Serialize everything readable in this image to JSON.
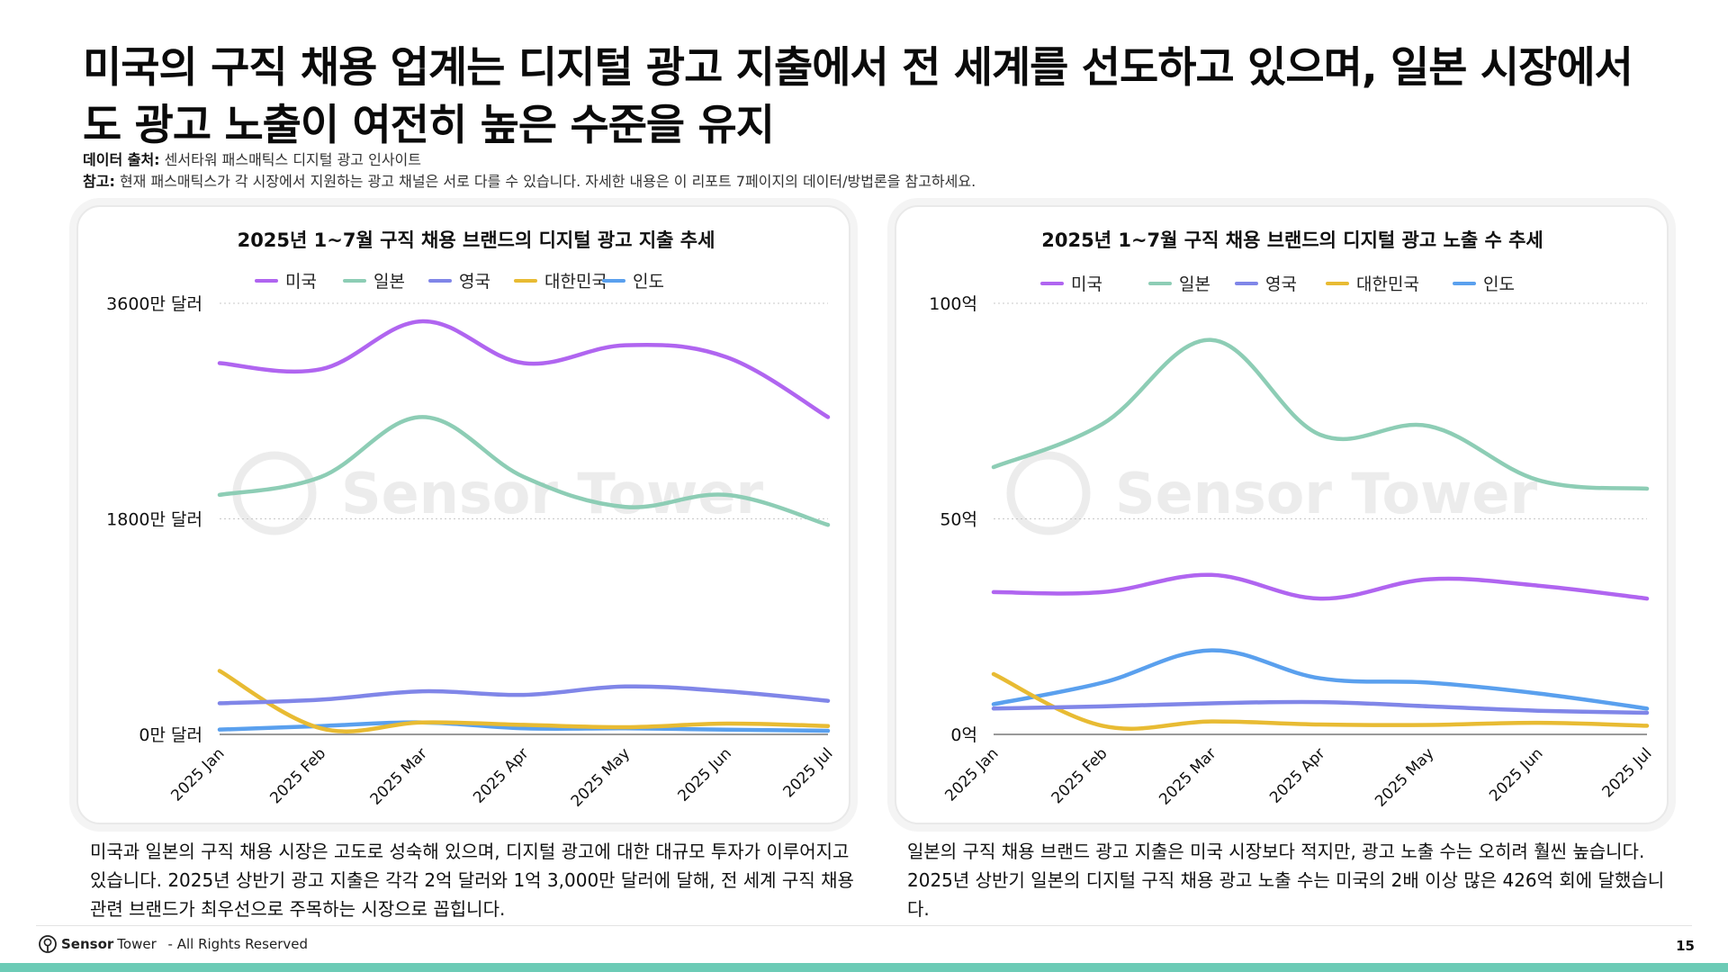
{
  "header": {
    "title": "미국의 구직 채용 업계는 디지털 광고 지출에서 전 세계를 선도하고 있으며, 일본 시장에서도 광고 노출이 여전히 높은 수준을 유지",
    "source_label": "데이터 출처:",
    "source_text": "센서타워 패스매틱스 디지털 광고 인사이트",
    "note_label": "참고:",
    "note_text": "현재 패스매틱스가 각 시장에서 지원하는 광고 채널은 서로 다를 수 있습니다. 자세한 내용은 이 리포트 7페이지의 데이터/방법론을 참고하세요."
  },
  "watermark": "Sensor Tower",
  "colors": {
    "미국": "#b065f0",
    "일본": "#8dcdb5",
    "영국": "#8086e8",
    "대한민국": "#e8bb33",
    "인도": "#5aa0ee"
  },
  "chart_data": [
    {
      "type": "line",
      "title": "2025년 1~7월 구직 채용 브랜드의 디지털 광고 지출 추세",
      "categories": [
        "2025 Jan",
        "2025 Feb",
        "2025 Mar",
        "2025 Apr",
        "2025 May",
        "2025 Jun",
        "2025 Jul"
      ],
      "ylim": [
        0,
        36
      ],
      "y_ticks": [
        0,
        18,
        36
      ],
      "y_tick_labels": [
        "0만 달러",
        "1800만 달러",
        "3600만 달러"
      ],
      "legend": [
        "미국",
        "일본",
        "영국",
        "대한민국",
        "인도"
      ],
      "legend_position": "top",
      "grid": true,
      "series": [
        {
          "name": "미국",
          "values": [
            31,
            30.5,
            34.5,
            31,
            32.5,
            31.5,
            26.5
          ]
        },
        {
          "name": "일본",
          "values": [
            20,
            21.5,
            26.5,
            21.5,
            19,
            20,
            17.5
          ]
        },
        {
          "name": "영국",
          "values": [
            2.6,
            2.9,
            3.6,
            3.3,
            4.0,
            3.6,
            2.8
          ]
        },
        {
          "name": "대한민국",
          "values": [
            5.3,
            0.5,
            1.0,
            0.8,
            0.6,
            0.9,
            0.7
          ]
        },
        {
          "name": "인도",
          "values": [
            0.4,
            0.7,
            1.0,
            0.5,
            0.5,
            0.4,
            0.3
          ]
        }
      ]
    },
    {
      "type": "line",
      "title": "2025년 1~7월 구직 채용 브랜드의 디지털 광고 노출 수 추세",
      "categories": [
        "2025 Jan",
        "2025 Feb",
        "2025 Mar",
        "2025 Apr",
        "2025 May",
        "2025 Jun",
        "2025 Jul"
      ],
      "ylim": [
        0,
        100
      ],
      "y_ticks": [
        0,
        50,
        100
      ],
      "y_tick_labels": [
        "0억",
        "50억",
        "100억"
      ],
      "legend": [
        "미국",
        "일본",
        "영국",
        "대한민국",
        "인도"
      ],
      "legend_position": "top",
      "grid": true,
      "series": [
        {
          "name": "미국",
          "values": [
            33,
            33,
            37,
            31.5,
            36,
            34.5,
            31.5
          ]
        },
        {
          "name": "일본",
          "values": [
            62,
            72,
            91.5,
            69.5,
            71.5,
            59,
            57
          ]
        },
        {
          "name": "영국",
          "values": [
            6,
            6.5,
            7.2,
            7.5,
            6.5,
            5.5,
            5
          ]
        },
        {
          "name": "대한민국",
          "values": [
            14,
            2,
            3,
            2.3,
            2.2,
            2.7,
            2
          ]
        },
        {
          "name": "인도",
          "values": [
            7,
            12,
            19.5,
            13,
            12,
            9.5,
            6
          ]
        }
      ]
    }
  ],
  "descriptions": {
    "left": "미국과 일본의 구직 채용 시장은 고도로 성숙해 있으며, 디지털 광고에 대한 대규모 투자가 이루어지고 있습니다. 2025년 상반기 광고 지출은 각각 2억 달러와 1억 3,000만 달러에 달해, 전 세계 구직 채용 관련 브랜드가 최우선으로 주목하는 시장으로 꼽힙니다.",
    "right": "일본의 구직 채용 브랜드 광고 지출은 미국 시장보다 적지만, 광고 노출 수는 오히려 훨씬 높습니다. 2025년 상반기 일본의 디지털 구직 채용 광고 노출 수는 미국의 2배 이상 많은 426억 회에 달했습니다."
  },
  "footer": {
    "brand": "Sensor",
    "brand_suffix": "Tower",
    "rights": "- All Rights Reserved",
    "page_number": "15"
  }
}
